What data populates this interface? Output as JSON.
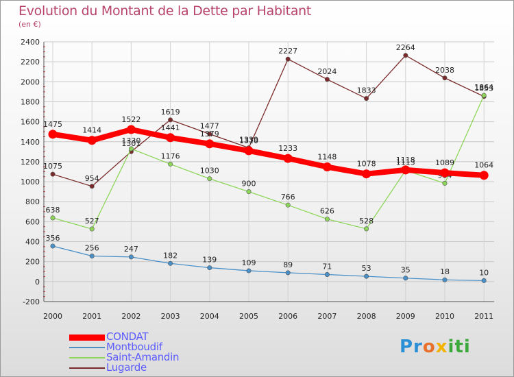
{
  "title": "Evolution du Montant de la Dette par Habitant",
  "subtitle": "(en €)",
  "chart_data": {
    "type": "line",
    "title": "Evolution du Montant de la Dette par Habitant",
    "ylabel": "(en €)",
    "x": [
      "2000",
      "2001",
      "2002",
      "2003",
      "2004",
      "2005",
      "2006",
      "2007",
      "2008",
      "2009",
      "2010",
      "2011"
    ],
    "ylim": [
      -200,
      2400
    ],
    "yticks": [
      -200,
      0,
      200,
      400,
      600,
      800,
      1000,
      1200,
      1400,
      1600,
      1800,
      2000,
      2200,
      2400
    ],
    "series": [
      {
        "name": "Lugarde",
        "color": "#7a2a2a",
        "values": [
          1075,
          954,
          1301,
          1619,
          1477,
          1339,
          2227,
          2024,
          1833,
          2264,
          2038,
          1853
        ]
      },
      {
        "name": "Saint-Amandin",
        "color": "#8ed65a",
        "values": [
          638,
          527,
          1330,
          1176,
          1030,
          900,
          766,
          626,
          528,
          1113,
          984,
          1864
        ]
      },
      {
        "name": "Montboudif",
        "color": "#4a90c8",
        "values": [
          356,
          256,
          247,
          182,
          139,
          109,
          89,
          71,
          53,
          35,
          18,
          10
        ]
      },
      {
        "name": "CONDAT",
        "color": "#ff0000",
        "values": [
          1475,
          1414,
          1522,
          1441,
          1379,
          1310,
          1233,
          1148,
          1078,
          1118,
          1089,
          1064
        ]
      }
    ]
  },
  "legend": [
    {
      "name": "CONDAT",
      "color": "#ff0000"
    },
    {
      "name": "Montboudif",
      "color": "#4a90c8"
    },
    {
      "name": "Saint-Amandin",
      "color": "#8ed65a"
    },
    {
      "name": "Lugarde",
      "color": "#7a2a2a"
    }
  ],
  "brand": {
    "p1": "Pr",
    "p2": "o",
    "p3": "x",
    "p4": "iti"
  }
}
